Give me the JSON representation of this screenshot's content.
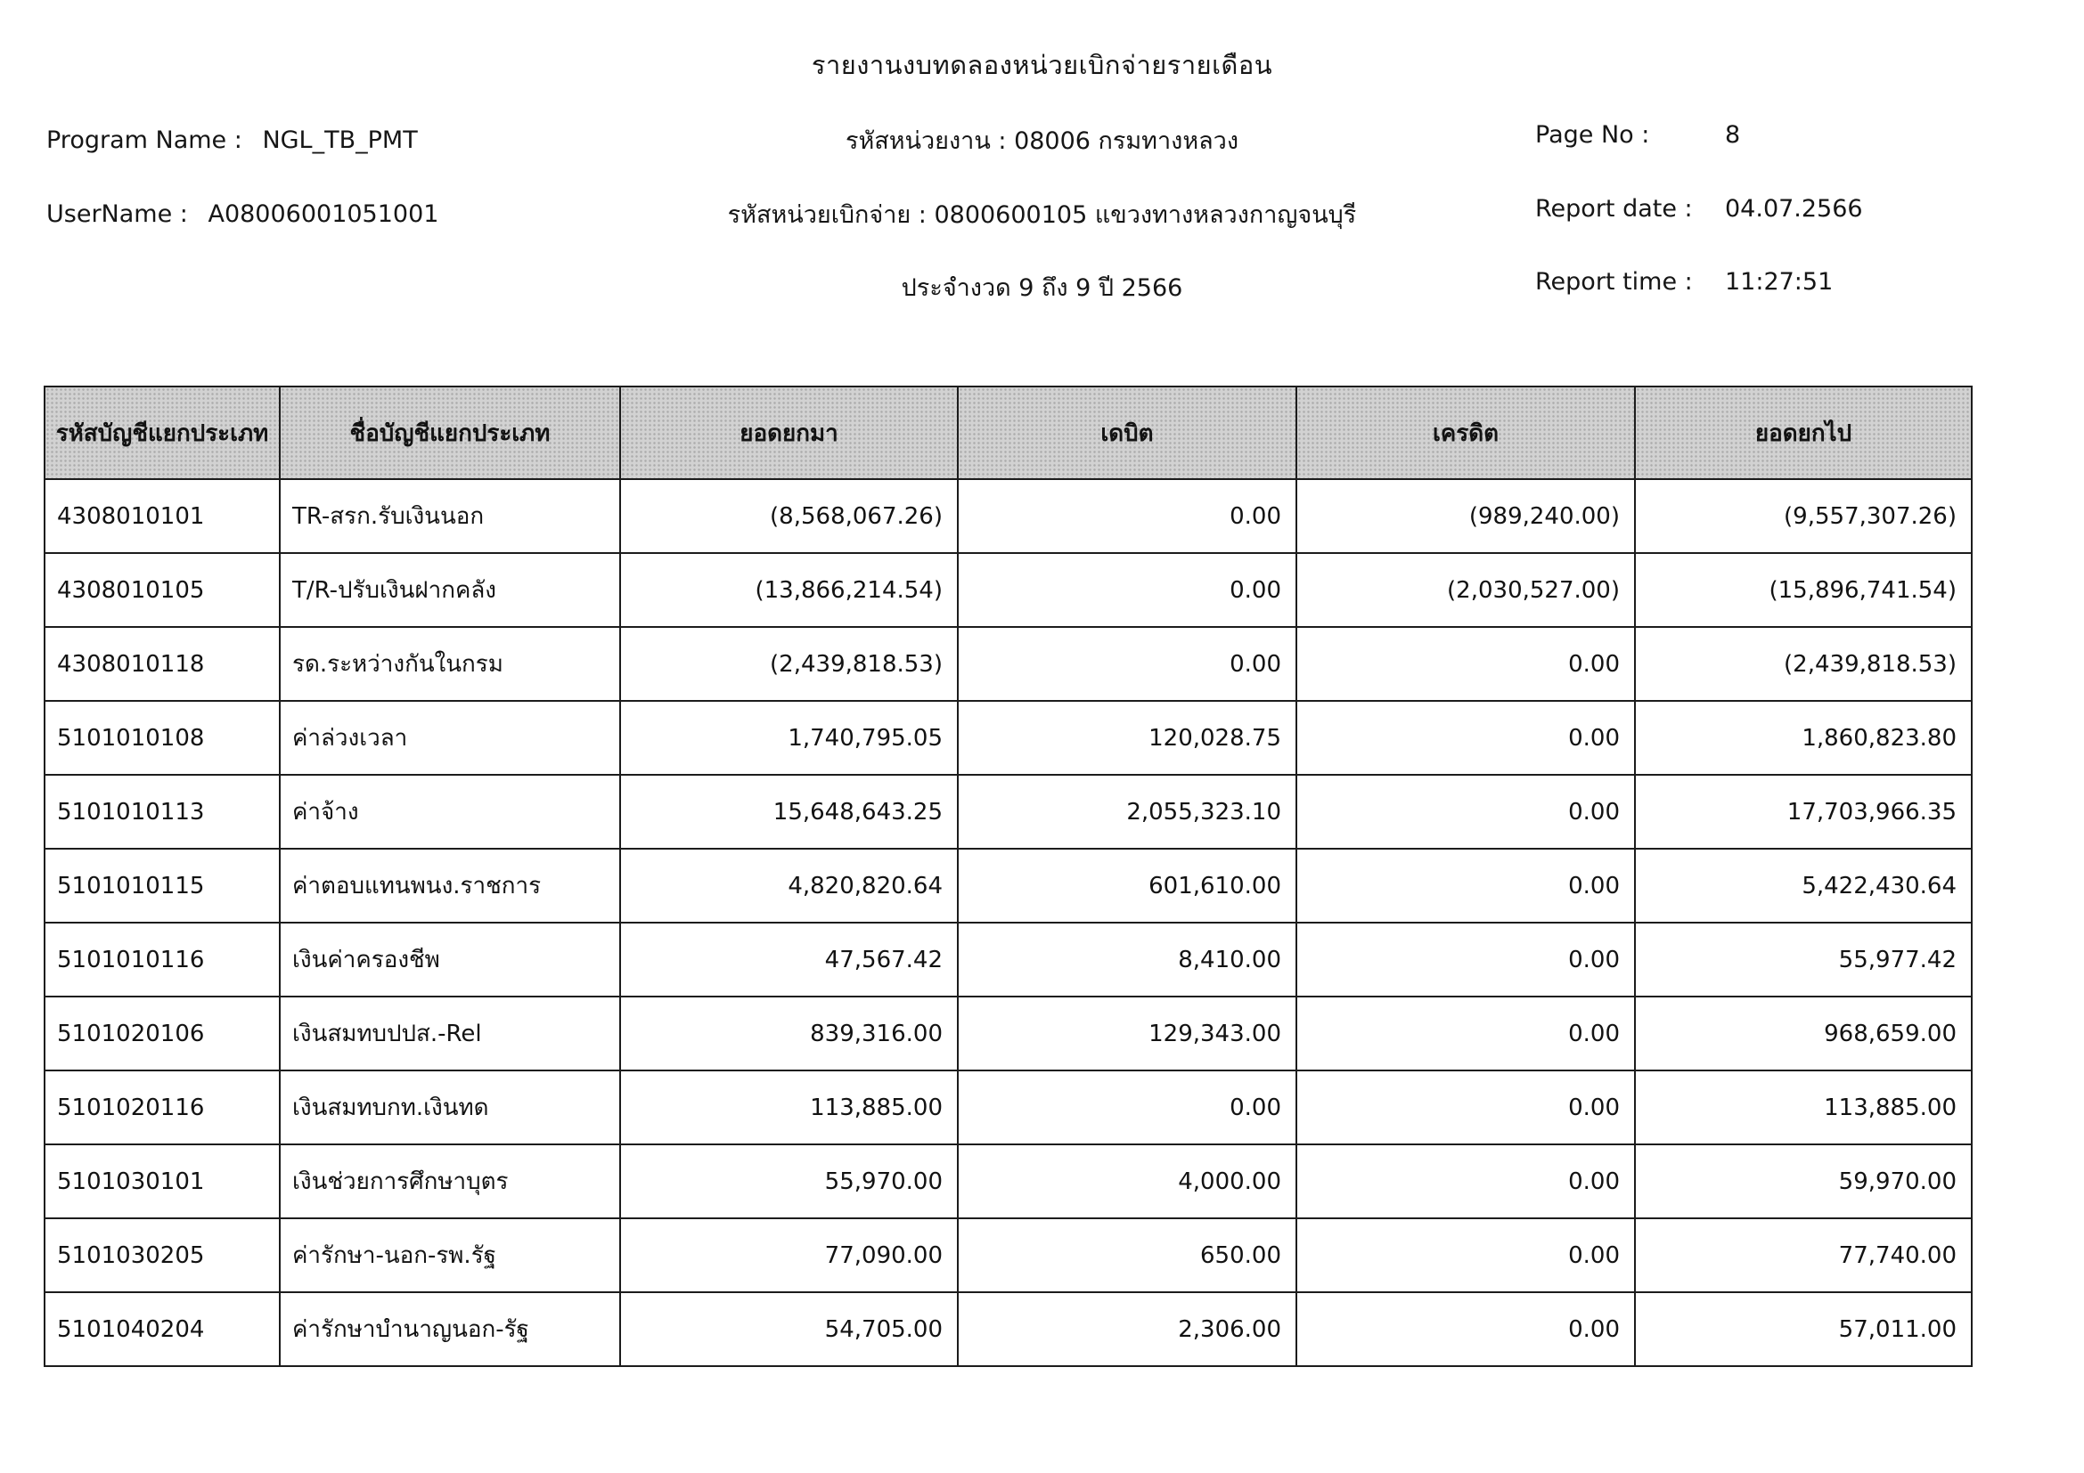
{
  "report": {
    "title": "รายงานงบทดลองหน่วยเบิกจ่ายรายเดือน",
    "left": {
      "program_label": "Program Name :",
      "program_value": "NGL_TB_PMT",
      "user_label": "UserName :",
      "user_value": "A08006001051001"
    },
    "center": {
      "agency": "รหัสหน่วยงาน : 08006 กรมทางหลวง",
      "unit": "รหัสหน่วยเบิกจ่าย : 0800600105 แขวงทางหลวงกาญจนบุรี",
      "period": "ประจำงวด 9 ถึง 9 ปี 2566"
    },
    "right": {
      "page_label": "Page No :",
      "page_value": "8",
      "date_label": "Report date :",
      "date_value": "04.07.2566",
      "time_label": "Report time :",
      "time_value": "11:27:51"
    }
  },
  "table": {
    "headers": [
      "รหัสบัญชีแยกประเภท",
      "ชื่อบัญชีแยกประเภท",
      "ยอดยกมา",
      "เดบิต",
      "เครดิต",
      "ยอดยกไป"
    ],
    "rows": [
      [
        "4308010101",
        "TR-สรก.รับเงินนอก",
        "(8,568,067.26)",
        "0.00",
        "(989,240.00)",
        "(9,557,307.26)"
      ],
      [
        "4308010105",
        "T/R-ปรับเงินฝากคลัง",
        "(13,866,214.54)",
        "0.00",
        "(2,030,527.00)",
        "(15,896,741.54)"
      ],
      [
        "4308010118",
        "รด.ระหว่างกันในกรม",
        "(2,439,818.53)",
        "0.00",
        "0.00",
        "(2,439,818.53)"
      ],
      [
        "5101010108",
        "ค่าล่วงเวลา",
        "1,740,795.05",
        "120,028.75",
        "0.00",
        "1,860,823.80"
      ],
      [
        "5101010113",
        "ค่าจ้าง",
        "15,648,643.25",
        "2,055,323.10",
        "0.00",
        "17,703,966.35"
      ],
      [
        "5101010115",
        "ค่าตอบแทนพนง.ราชการ",
        "4,820,820.64",
        "601,610.00",
        "0.00",
        "5,422,430.64"
      ],
      [
        "5101010116",
        "เงินค่าครองชีพ",
        "47,567.42",
        "8,410.00",
        "0.00",
        "55,977.42"
      ],
      [
        "5101020106",
        "เงินสมทบปปส.-Rel",
        "839,316.00",
        "129,343.00",
        "0.00",
        "968,659.00"
      ],
      [
        "5101020116",
        "เงินสมทบกท.เงินทด",
        "113,885.00",
        "0.00",
        "0.00",
        "113,885.00"
      ],
      [
        "5101030101",
        "เงินช่วยการศึกษาบุตร",
        "55,970.00",
        "4,000.00",
        "0.00",
        "59,970.00"
      ],
      [
        "5101030205",
        "ค่ารักษา-นอก-รพ.รัฐ",
        "77,090.00",
        "650.00",
        "0.00",
        "77,740.00"
      ],
      [
        "5101040204",
        "ค่ารักษาบำนาญนอก-รัฐ",
        "54,705.00",
        "2,306.00",
        "0.00",
        "57,011.00"
      ]
    ]
  }
}
